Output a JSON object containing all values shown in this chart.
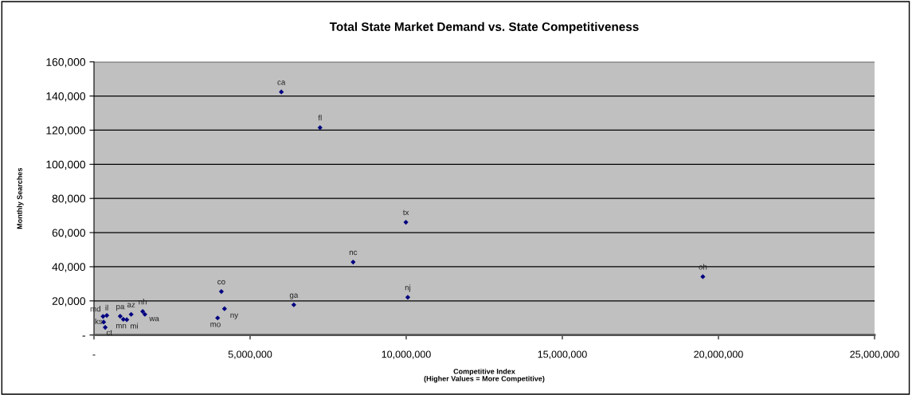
{
  "chart_data": {
    "type": "scatter",
    "title": "Total State Market Demand vs. State Competitiveness",
    "xlabel": "Competitive Index\n(Higher Values = More Competitive)",
    "ylabel": "Monthly Searches",
    "x": [
      6000000,
      7240000,
      9990000,
      8300000,
      10050000,
      19500000,
      4080000,
      6400000,
      4180000,
      3960000,
      290000,
      410000,
      310000,
      360000,
      840000,
      940000,
      1050000,
      1190000,
      1560000,
      1630000
    ],
    "series": [
      {
        "color": "#000080",
        "values": [
          142400,
          121500,
          66060,
          42750,
          22100,
          34200,
          25500,
          17700,
          15400,
          10000,
          10900,
          11500,
          7600,
          4500,
          11000,
          9200,
          9000,
          12100,
          13800,
          12100
        ],
        "value_labels": [
          "ca",
          "fl",
          "tx",
          "nc",
          "nj",
          "oh",
          "co",
          "ga",
          "ny",
          "mo",
          "md",
          "il",
          "ks",
          "ct",
          "pa",
          "mn",
          "mi",
          "az",
          "nh",
          "wa"
        ]
      }
    ],
    "xlim": [
      0,
      25000000
    ],
    "ylim": [
      0,
      160000
    ],
    "xticks": [
      {
        "value": 0,
        "label": "-"
      },
      {
        "value": 5000000,
        "label": "5,000,000"
      },
      {
        "value": 10000000,
        "label": "10,000,000"
      },
      {
        "value": 15000000,
        "label": "15,000,000"
      },
      {
        "value": 20000000,
        "label": "20,000,000"
      },
      {
        "value": 25000000,
        "label": "25,000,000"
      }
    ],
    "yticks": [
      {
        "value": 0,
        "label": "-"
      },
      {
        "value": 20000,
        "label": "20,000"
      },
      {
        "value": 40000,
        "label": "40,000"
      },
      {
        "value": 60000,
        "label": "60,000"
      },
      {
        "value": 80000,
        "label": "80,000"
      },
      {
        "value": 100000,
        "label": "100,000"
      },
      {
        "value": 120000,
        "label": "120,000"
      },
      {
        "value": 140000,
        "label": "140,000"
      },
      {
        "value": 160000,
        "label": "160,000"
      }
    ],
    "grid": "y",
    "marker": "diamond"
  }
}
